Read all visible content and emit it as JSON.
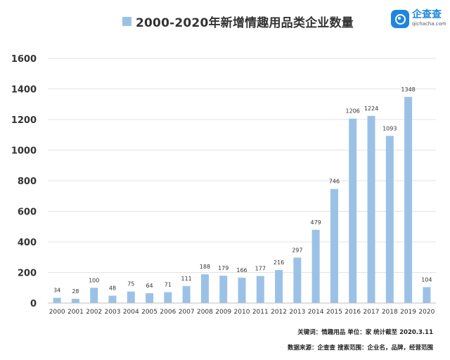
{
  "chart_data": {
    "type": "bar",
    "title": "2000-2020年新增情趣用品类企业数量",
    "series": [
      {
        "name": "2000-2020年新增情趣用品类企业数量",
        "values": [
          34,
          28,
          100,
          48,
          75,
          64,
          71,
          111,
          188,
          179,
          166,
          177,
          216,
          297,
          479,
          746,
          1206,
          1224,
          1093,
          1348,
          104
        ]
      }
    ],
    "categories": [
      "2000",
      "2001",
      "2002",
      "2003",
      "2004",
      "2005",
      "2006",
      "2007",
      "2008",
      "2009",
      "2010",
      "2011",
      "2012",
      "2013",
      "2014",
      "2015",
      "2016",
      "2017",
      "2018",
      "2019",
      "2020"
    ],
    "ylim": [
      0,
      1600
    ],
    "yticks": [
      0,
      200,
      400,
      600,
      800,
      1000,
      1200,
      1400,
      1600
    ],
    "grid": true,
    "legend": "top",
    "bar_color": "#9bc2e6"
  },
  "logo": {
    "name": "企查查",
    "url": "qichacha.com",
    "icon": "qichacha-logo-icon",
    "color": "#1f86e0"
  },
  "footnotes": {
    "line1": "关键词：情趣用品   单位：家   统计截至 2020.3.11",
    "line2": "数据来源：企查查 搜索范围：企业名，品牌，经营范围"
  }
}
